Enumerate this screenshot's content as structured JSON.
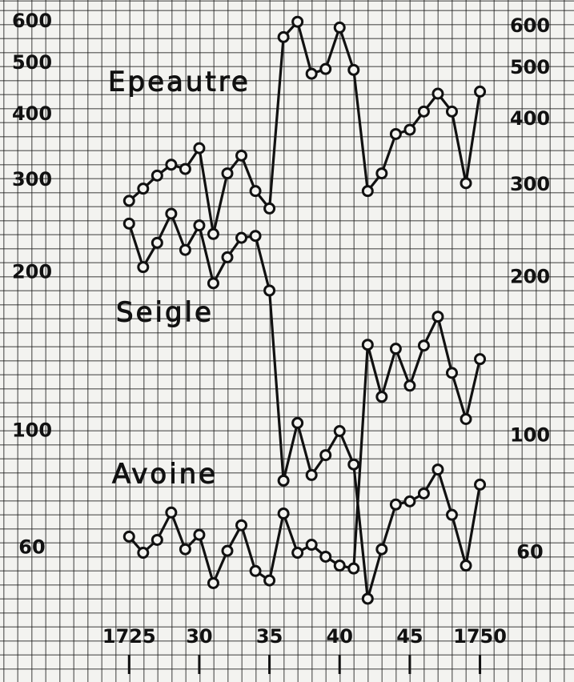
{
  "chart_data": {
    "type": "line",
    "log_scale": true,
    "color": "#111111",
    "x": [
      1725,
      1726,
      1727,
      1728,
      1729,
      1730,
      1731,
      1732,
      1733,
      1734,
      1735,
      1736,
      1737,
      1738,
      1739,
      1740,
      1741,
      1742,
      1743,
      1744,
      1745,
      1746,
      1747,
      1748,
      1749,
      1750
    ],
    "xlim": [
      1715.8,
      1756.7
    ],
    "xticks": [
      1725,
      {
        "value": 1730,
        "label": "30"
      },
      {
        "value": 1735,
        "label": "35"
      },
      {
        "value": 1740,
        "label": "40"
      },
      {
        "value": 1745,
        "label": "45"
      },
      1750
    ],
    "ylim": [
      40,
      660
    ],
    "yticks": [
      60,
      100,
      200,
      300,
      400,
      500,
      600
    ],
    "series": [
      {
        "name": "Epeautre",
        "color": "#111111",
        "values": [
          274,
          289,
          306,
          321,
          315,
          345,
          237,
          309,
          334,
          286,
          265,
          561,
          600,
          478,
          488,
          585,
          486,
          286,
          309,
          367,
          374,
          405,
          438,
          405,
          296,
          442
        ]
      },
      {
        "name": "Seigle",
        "color": "#111111",
        "values": [
          248,
          205,
          228,
          259,
          221,
          246,
          191,
          214,
          233,
          235,
          185,
          80.5,
          103.6,
          82.5,
          90,
          100,
          86.4,
          48,
          59.6,
          72.5,
          73.5,
          76.1,
          84.5,
          69.3,
          55.5,
          79.1
        ]
      },
      {
        "name": "Avoine",
        "color": "#111111",
        "values": [
          63,
          58.7,
          62.1,
          70,
          59.6,
          63.5,
          51.4,
          59.2,
          66.2,
          54.2,
          52,
          69.7,
          58.7,
          60.8,
          57.7,
          55.5,
          54.8,
          145.9,
          116.2,
          143.4,
          122,
          145.4,
          165,
          129,
          105.4,
          137
        ]
      }
    ]
  }
}
